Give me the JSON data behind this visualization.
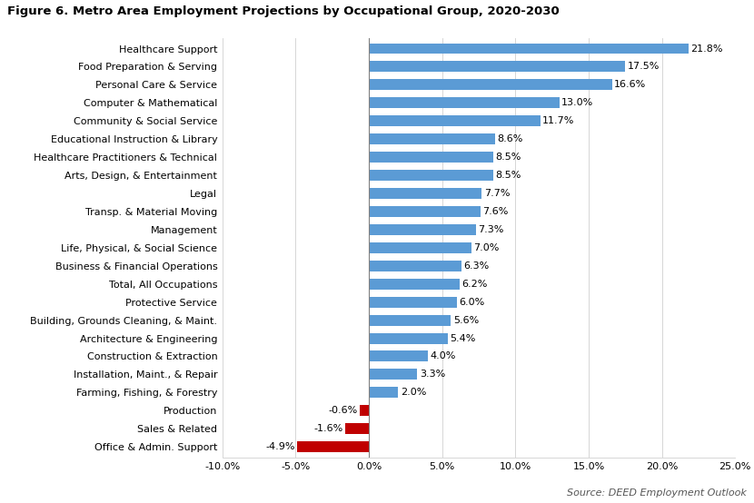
{
  "title": "Figure 6. Metro Area Employment Projections by Occupational Group, 2020-2030",
  "categories": [
    "Healthcare Support",
    "Food Preparation & Serving",
    "Personal Care & Service",
    "Computer & Mathematical",
    "Community & Social Service",
    "Educational Instruction & Library",
    "Healthcare Practitioners & Technical",
    "Arts, Design, & Entertainment",
    "Legal",
    "Transp. & Material Moving",
    "Management",
    "Life, Physical, & Social Science",
    "Business & Financial Operations",
    "Total, All Occupations",
    "Protective Service",
    "Building, Grounds Cleaning, & Maint.",
    "Architecture & Engineering",
    "Construction & Extraction",
    "Installation, Maint., & Repair",
    "Farming, Fishing, & Forestry",
    "Production",
    "Sales & Related",
    "Office & Admin. Support"
  ],
  "values": [
    21.8,
    17.5,
    16.6,
    13.0,
    11.7,
    8.6,
    8.5,
    8.5,
    7.7,
    7.6,
    7.3,
    7.0,
    6.3,
    6.2,
    6.0,
    5.6,
    5.4,
    4.0,
    3.3,
    2.0,
    -0.6,
    -1.6,
    -4.9
  ],
  "positive_color": "#5B9BD5",
  "negative_color": "#C00000",
  "xlim": [
    -10,
    25
  ],
  "xticks": [
    -10,
    -5,
    0,
    5,
    10,
    15,
    20,
    25
  ],
  "xtick_labels": [
    "-10.0%",
    "-5.0%",
    "0.0%",
    "5.0%",
    "10.0%",
    "15.0%",
    "20.0%",
    "25.0%"
  ],
  "source_text": "Source: DEED Employment Outlook",
  "background_color": "#FFFFFF",
  "title_fontsize": 9.5,
  "label_fontsize": 8.0,
  "tick_fontsize": 8.0,
  "source_fontsize": 8.0,
  "bar_height": 0.6
}
